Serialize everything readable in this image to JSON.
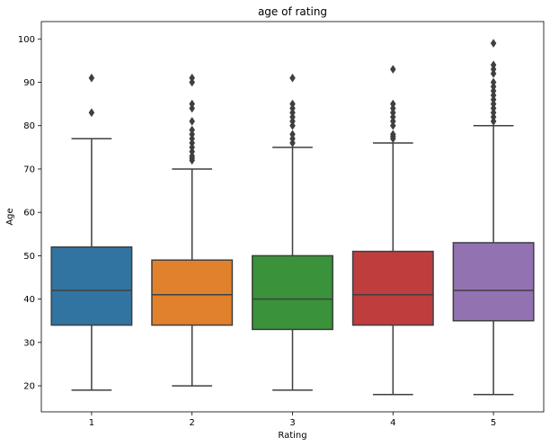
{
  "chart_data": {
    "type": "box",
    "title": "age of rating",
    "xlabel": "Rating",
    "ylabel": "Age",
    "categories": [
      "1",
      "2",
      "3",
      "4",
      "5"
    ],
    "ylim": [
      14,
      104
    ],
    "yticks": [
      20,
      30,
      40,
      50,
      60,
      70,
      80,
      90,
      100
    ],
    "grid": false,
    "boxes": [
      {
        "category": "1",
        "color": "#3274a1",
        "whisker_low": 19,
        "q1": 34,
        "median": 42,
        "q3": 52,
        "whisker_high": 77,
        "outliers": [
          83,
          91
        ]
      },
      {
        "category": "2",
        "color": "#e1812c",
        "whisker_low": 20,
        "q1": 34,
        "median": 41,
        "q3": 49,
        "whisker_high": 70,
        "outliers": [
          72,
          72.5,
          73,
          74,
          75,
          76,
          77,
          78,
          79,
          81,
          84,
          85,
          90,
          91
        ]
      },
      {
        "category": "3",
        "color": "#3a923a",
        "whisker_low": 19,
        "q1": 33,
        "median": 40,
        "q3": 50,
        "whisker_high": 75,
        "outliers": [
          76,
          77,
          78,
          80,
          81,
          82,
          83,
          84,
          85,
          91
        ]
      },
      {
        "category": "4",
        "color": "#c03d3e",
        "whisker_low": 18,
        "q1": 34,
        "median": 41,
        "q3": 51,
        "whisker_high": 76,
        "outliers": [
          77,
          77.5,
          78,
          80,
          81,
          82,
          83,
          84,
          85,
          93
        ]
      },
      {
        "category": "5",
        "color": "#9372b2",
        "whisker_low": 18,
        "q1": 35,
        "median": 42,
        "q3": 53,
        "whisker_high": 80,
        "outliers": [
          81,
          82,
          83,
          84,
          85,
          86,
          87,
          88,
          89,
          90,
          92,
          93,
          94,
          99
        ]
      }
    ]
  }
}
